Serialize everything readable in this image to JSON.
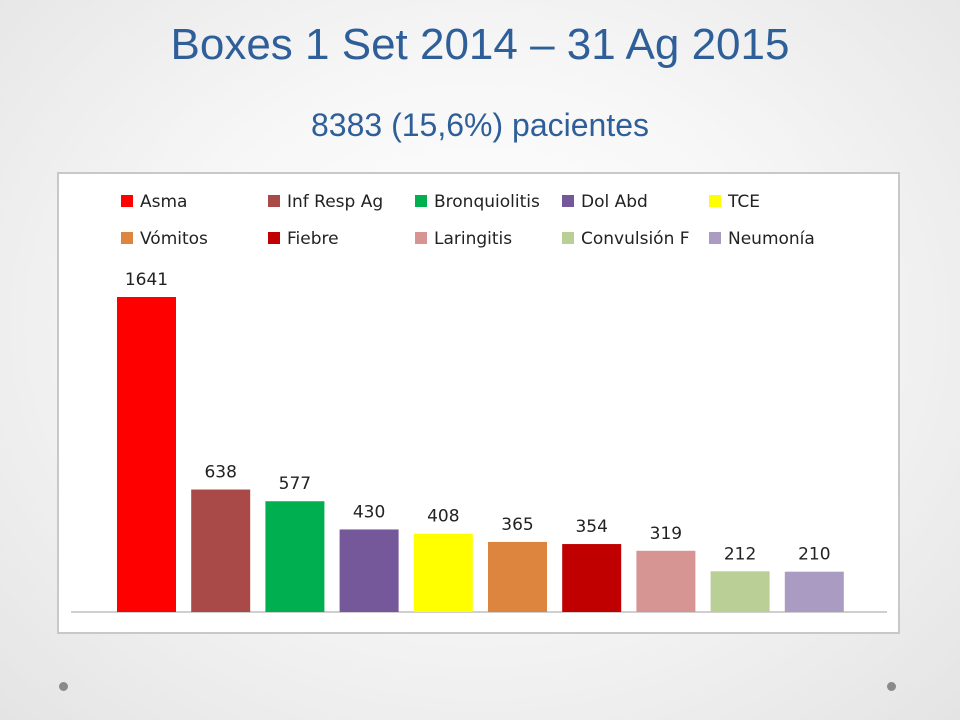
{
  "slide": {
    "title": "Boxes 1 Set 2014 – 31 Ag 2015",
    "subtitle": "8383 (15,6%) pacientes"
  },
  "chart_data": {
    "type": "bar",
    "categories": [
      "Asma",
      "Inf Resp Ag",
      "Bronquiolitis",
      "Dol Abd",
      "TCE",
      "Vómitos",
      "Fiebre",
      "Laringitis",
      "Convulsión F",
      "Neumonía"
    ],
    "values": [
      1641,
      638,
      577,
      430,
      408,
      365,
      354,
      319,
      212,
      210
    ],
    "colors": [
      "#ff0000",
      "#a94a48",
      "#00b050",
      "#75589a",
      "#ffff00",
      "#dd853f",
      "#c00000",
      "#d69592",
      "#b9cf96",
      "#a99bc2"
    ],
    "legend_position": "top",
    "grid": false,
    "ylim": [
      0,
      1641
    ]
  }
}
